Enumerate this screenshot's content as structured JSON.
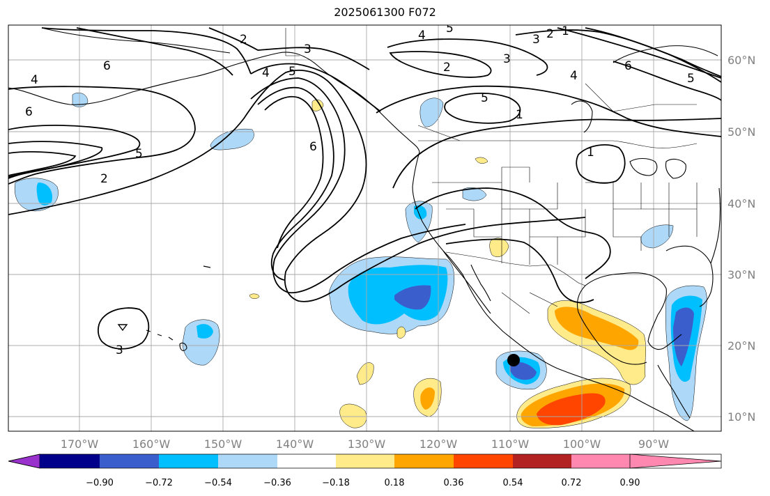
{
  "title": "2025061300 F072",
  "longitude_labels": [
    "170°W",
    "160°W",
    "150°W",
    "140°W",
    "130°W",
    "120°W",
    "110°W",
    "100°W",
    "90°W"
  ],
  "latitude_labels": [
    "60°N",
    "50°N",
    "40°N",
    "30°N",
    "20°N",
    "10°N"
  ],
  "colorbar": {
    "tick_labels": [
      "−0.90",
      "−0.72",
      "−0.54",
      "−0.36",
      "−0.18",
      "0.18",
      "0.36",
      "0.54",
      "0.72",
      "0.90"
    ],
    "colors": [
      "#9932cc",
      "#00008b",
      "#3a5fcd",
      "#00bfff",
      "#add8f8",
      "#ffffff",
      "#ffeb8a",
      "#ffa500",
      "#ff4500",
      "#b22222",
      "#ff88b0"
    ]
  },
  "contour_labels": [
    "2",
    "5",
    "4",
    "3",
    "2",
    "1",
    "3",
    "2",
    "4",
    "5",
    "3",
    "6",
    "5",
    "4",
    "6",
    "2",
    "1",
    "5",
    "6",
    "4",
    "6",
    "5",
    "2",
    "1",
    "3"
  ],
  "fill_colors": {
    "light_blue": "#add8f8",
    "blue": "#00bfff",
    "dark_blue": "#3a5fcd",
    "yellow": "#ffeb8a",
    "orange": "#ffa500",
    "red_orange": "#ff4500"
  },
  "marker": {
    "type": "black-dot",
    "color": "#000000"
  }
}
